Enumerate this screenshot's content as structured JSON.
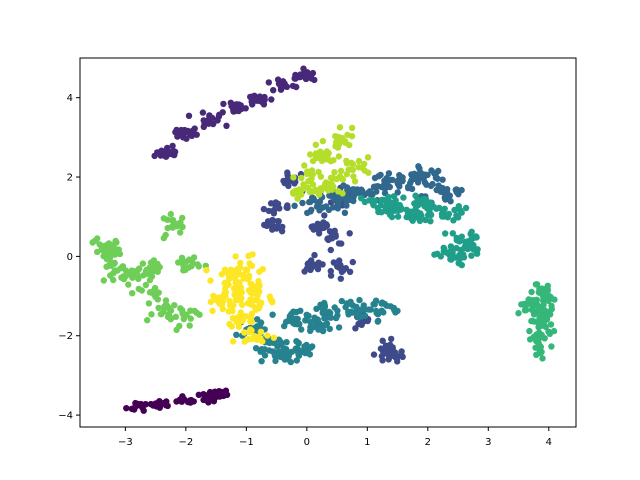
{
  "chart_data": {
    "type": "scatter",
    "title": "",
    "xlabel": "",
    "ylabel": "",
    "xlim": [
      -3.75,
      4.45
    ],
    "ylim": [
      -4.3,
      5.0
    ],
    "xticks": [
      -3,
      -2,
      -1,
      0,
      1,
      2,
      3,
      4
    ],
    "xtick_labels": [
      "−3",
      "−2",
      "−1",
      "0",
      "1",
      "2",
      "3",
      "4"
    ],
    "yticks": [
      -4,
      -2,
      0,
      2,
      4
    ],
    "ytick_labels": [
      "−4",
      "−2",
      "0",
      "2",
      "4"
    ],
    "grid": false,
    "legend": "none",
    "colormap": "viridis",
    "clusters": [
      {
        "color": "#440154",
        "centers": [
          [
            -2.8,
            -3.8
          ],
          [
            -2.4,
            -3.72
          ],
          [
            -2.0,
            -3.65
          ],
          [
            -1.6,
            -3.55
          ],
          [
            -1.45,
            -3.45
          ]
        ],
        "spread": [
          0.09,
          0.05
        ],
        "n": 75
      },
      {
        "color": "#482878",
        "centers": [
          [
            -2.3,
            2.6
          ],
          [
            -2.0,
            3.1
          ],
          [
            -1.6,
            3.45
          ],
          [
            -1.2,
            3.75
          ],
          [
            -0.8,
            4.0
          ],
          [
            -0.4,
            4.3
          ],
          [
            -0.05,
            4.55
          ]
        ],
        "spread": [
          0.1,
          0.08
        ],
        "n": 140
      },
      {
        "color": "#3e4a89",
        "centers": [
          [
            -0.3,
            1.9
          ],
          [
            -0.5,
            1.2
          ],
          [
            0.2,
            0.8
          ],
          [
            0.5,
            0.5
          ],
          [
            0.6,
            -0.3
          ],
          [
            0.1,
            -0.2
          ],
          [
            1.3,
            -2.3
          ],
          [
            1.4,
            -2.5
          ],
          [
            0.9,
            -1.6
          ],
          [
            0.6,
            1.4
          ],
          [
            -0.5,
            0.8
          ]
        ],
        "spread": [
          0.1,
          0.1
        ],
        "n": 170
      },
      {
        "color": "#31688e",
        "centers": [
          [
            0.5,
            1.5
          ],
          [
            0.9,
            1.6
          ],
          [
            1.3,
            1.8
          ],
          [
            1.7,
            1.9
          ],
          [
            2.0,
            2.0
          ],
          [
            2.3,
            1.6
          ],
          [
            0.2,
            1.3
          ]
        ],
        "spread": [
          0.18,
          0.12
        ],
        "n": 160
      },
      {
        "color": "#26828e",
        "centers": [
          [
            -0.6,
            -2.2
          ],
          [
            -0.4,
            -2.5
          ],
          [
            -0.2,
            -1.6
          ],
          [
            0.3,
            -1.4
          ],
          [
            -0.1,
            -2.3
          ],
          [
            0.8,
            -1.3
          ],
          [
            1.2,
            -1.3
          ],
          [
            -0.9,
            -1.8
          ],
          [
            0.2,
            -1.8
          ]
        ],
        "spread": [
          0.14,
          0.12
        ],
        "n": 200
      },
      {
        "color": "#1f9e89",
        "centers": [
          [
            1.2,
            1.3
          ],
          [
            1.5,
            1.2
          ],
          [
            1.9,
            1.3
          ],
          [
            2.3,
            1.1
          ],
          [
            2.6,
            0.2
          ],
          [
            2.4,
            0.0
          ],
          [
            1.7,
            1.0
          ],
          [
            2.6,
            0.4
          ]
        ],
        "spread": [
          0.15,
          0.12
        ],
        "n": 150
      },
      {
        "color": "#35b779",
        "centers": [
          [
            3.9,
            -0.9
          ],
          [
            3.9,
            -1.3
          ],
          [
            3.9,
            -1.7
          ],
          [
            3.85,
            -2.1
          ],
          [
            3.7,
            -1.2
          ]
        ],
        "spread": [
          0.09,
          0.18
        ],
        "n": 110
      },
      {
        "color": "#6ece58",
        "centers": [
          [
            -3.2,
            0.1
          ],
          [
            -3.1,
            -0.4
          ],
          [
            -2.8,
            -0.5
          ],
          [
            -2.6,
            -0.9
          ],
          [
            -2.3,
            -1.4
          ],
          [
            -2.0,
            -1.5
          ],
          [
            -3.3,
            0.2
          ],
          [
            -2.5,
            -0.3
          ],
          [
            -2.0,
            -0.2
          ],
          [
            -2.2,
            0.8
          ]
        ],
        "spread": [
          0.12,
          0.12
        ],
        "n": 170
      },
      {
        "color": "#b5de2b",
        "centers": [
          [
            0.6,
            2.9
          ],
          [
            0.3,
            2.5
          ],
          [
            0.1,
            2.0
          ],
          [
            0.4,
            1.8
          ],
          [
            0.8,
            2.2
          ],
          [
            -0.1,
            1.6
          ]
        ],
        "spread": [
          0.13,
          0.13
        ],
        "n": 110
      },
      {
        "color": "#fde725",
        "centers": [
          [
            -1.0,
            -0.3
          ],
          [
            -1.2,
            -0.9
          ],
          [
            -1.4,
            -1.2
          ],
          [
            -0.9,
            -0.8
          ],
          [
            -1.1,
            -1.6
          ],
          [
            -0.9,
            -2.0
          ],
          [
            -1.3,
            -0.5
          ],
          [
            -0.8,
            -1.2
          ]
        ],
        "spread": [
          0.12,
          0.12
        ],
        "n": 150
      }
    ]
  }
}
